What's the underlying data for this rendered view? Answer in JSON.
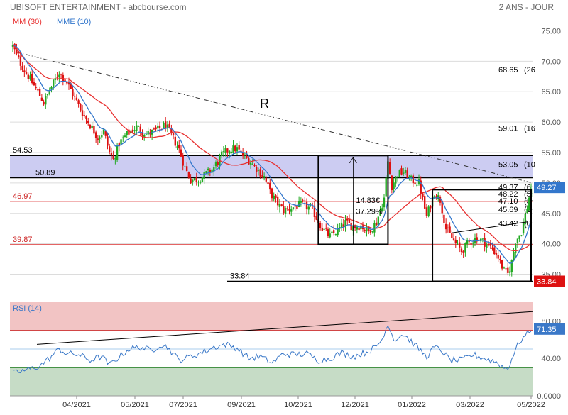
{
  "header": {
    "title": "UBISOFT ENTERTAINMENT - abcbourse.com",
    "period": "2 ANS - JOUR"
  },
  "colors": {
    "up": "#22aa22",
    "down": "#dd1111",
    "mm": "#e83030",
    "mme": "#3377cc",
    "zone": "#ccccf2",
    "rsi": "#3a78c8",
    "rsi_overbought_zone": "#f2c4c4",
    "rsi_oversold_zone": "#c6dcc6",
    "grid": "#dcdcdc"
  },
  "chart_data": [
    {
      "type": "candlestick",
      "legend": [
        {
          "label": "MM (30)",
          "color": "#e83030"
        },
        {
          "label": "MME (10)",
          "color": "#3377cc"
        }
      ],
      "x_tick_labels": [
        "04/2021",
        "05/2021",
        "07/2021",
        "09/2021",
        "10/2021",
        "12/2021",
        "01/2022",
        "03/2022",
        "05/2022"
      ],
      "y_ticks": [
        35,
        40,
        45,
        50,
        55,
        60,
        65,
        70,
        75
      ],
      "y_tick_labels": [
        "35.00",
        "40.00",
        "45.00",
        "50.00",
        "55.00",
        "60.00",
        "65.00",
        "70.00",
        "75.00"
      ],
      "ylim": [
        32.5,
        77.5
      ],
      "last_price": 49.27,
      "last_price_label": "49.27",
      "support_value": 33.84,
      "support_value_label": "33.84",
      "anchors": [
        {
          "t": 0,
          "v": 72.5
        },
        {
          "t": 3,
          "v": 70.2
        },
        {
          "t": 7,
          "v": 68.0
        },
        {
          "t": 12,
          "v": 65.5
        },
        {
          "t": 16,
          "v": 63.2
        },
        {
          "t": 20,
          "v": 65.8
        },
        {
          "t": 24,
          "v": 68.2
        },
        {
          "t": 28,
          "v": 66.5
        },
        {
          "t": 32,
          "v": 64.0
        },
        {
          "t": 36,
          "v": 61.5
        },
        {
          "t": 40,
          "v": 59.5
        },
        {
          "t": 44,
          "v": 57.5
        },
        {
          "t": 47,
          "v": 58.5
        },
        {
          "t": 50,
          "v": 55.0
        },
        {
          "t": 52,
          "v": 53.8
        },
        {
          "t": 55,
          "v": 56.5
        },
        {
          "t": 59,
          "v": 58.0
        },
        {
          "t": 64,
          "v": 59.2
        },
        {
          "t": 69,
          "v": 58.0
        },
        {
          "t": 74,
          "v": 58.6
        },
        {
          "t": 79,
          "v": 59.5
        },
        {
          "t": 82,
          "v": 57.8
        },
        {
          "t": 86,
          "v": 55.5
        },
        {
          "t": 89,
          "v": 52.5
        },
        {
          "t": 92,
          "v": 50.5
        },
        {
          "t": 96,
          "v": 50.6
        },
        {
          "t": 100,
          "v": 51.5
        },
        {
          "t": 104,
          "v": 52.5
        },
        {
          "t": 108,
          "v": 54.5
        },
        {
          "t": 112,
          "v": 55.6
        },
        {
          "t": 116,
          "v": 55.6
        },
        {
          "t": 119,
          "v": 54.5
        },
        {
          "t": 123,
          "v": 53.5
        },
        {
          "t": 127,
          "v": 52.0
        },
        {
          "t": 130,
          "v": 51.0
        },
        {
          "t": 133,
          "v": 48.5
        },
        {
          "t": 136,
          "v": 47.0
        },
        {
          "t": 140,
          "v": 45.5
        },
        {
          "t": 145,
          "v": 46.0
        },
        {
          "t": 150,
          "v": 46.5
        },
        {
          "t": 155,
          "v": 45.5
        },
        {
          "t": 160,
          "v": 42.5
        },
        {
          "t": 164,
          "v": 41.2
        },
        {
          "t": 168,
          "v": 42.2
        },
        {
          "t": 172,
          "v": 43.5
        },
        {
          "t": 176,
          "v": 42.8
        },
        {
          "t": 180,
          "v": 43.0
        },
        {
          "t": 184,
          "v": 42.0
        },
        {
          "t": 188,
          "v": 43.5
        },
        {
          "t": 192,
          "v": 47.5
        },
        {
          "t": 194,
          "v": 53.5
        },
        {
          "t": 196,
          "v": 49.5
        },
        {
          "t": 199,
          "v": 51.5
        },
        {
          "t": 202,
          "v": 51.8
        },
        {
          "t": 206,
          "v": 50.5
        },
        {
          "t": 210,
          "v": 50.0
        },
        {
          "t": 214,
          "v": 44.5
        },
        {
          "t": 218,
          "v": 48.5
        },
        {
          "t": 221,
          "v": 47.2
        },
        {
          "t": 224,
          "v": 42.5
        },
        {
          "t": 228,
          "v": 40.5
        },
        {
          "t": 232,
          "v": 38.8
        },
        {
          "t": 236,
          "v": 40.3
        },
        {
          "t": 240,
          "v": 41.0
        },
        {
          "t": 244,
          "v": 40.2
        },
        {
          "t": 248,
          "v": 39.2
        },
        {
          "t": 251,
          "v": 37.8
        },
        {
          "t": 254,
          "v": 35.5
        },
        {
          "t": 256,
          "v": 35.0
        },
        {
          "t": 258,
          "v": 37.0
        },
        {
          "t": 260,
          "v": 40.5
        },
        {
          "t": 263,
          "v": 42.0
        },
        {
          "t": 266,
          "v": 46.0
        },
        {
          "t": 268,
          "v": 49.27
        }
      ],
      "horizontal_levels": [
        {
          "value": 54.53,
          "label": "54.53",
          "color": "#000000",
          "width": 2
        },
        {
          "value": 50.89,
          "label": "50.89",
          "color": "#000000",
          "width": 2
        },
        {
          "value": 46.97,
          "label": "46.97",
          "color": "#dd3333",
          "width": 1
        },
        {
          "value": 39.87,
          "label": "39.87",
          "color": "#dd3333",
          "width": 1
        }
      ],
      "support_label": "33.84",
      "fib_levels": [
        {
          "value": 68.65,
          "label": "68.65",
          "pct": "(26"
        },
        {
          "value": 59.01,
          "label": "59.01",
          "pct": "(16"
        },
        {
          "value": 53.05,
          "label": "53.05",
          "pct": "(10"
        },
        {
          "value": 49.37,
          "label": "49.37",
          "pct": "(6"
        },
        {
          "value": 48.22,
          "label": "48.22",
          "pct": "(5"
        },
        {
          "value": 47.1,
          "label": "47.10",
          "pct": "(3"
        },
        {
          "value": 45.69,
          "label": "45.69",
          "pct": "(2"
        },
        {
          "value": 43.42,
          "label": "43.42",
          "pct": "(0"
        }
      ],
      "annotations": {
        "trend_label": "R",
        "measure_value": "14.83€",
        "measure_pct": "37.29%"
      }
    },
    {
      "type": "line",
      "title": "RSI (14)",
      "y_ticks": [
        0,
        40,
        80
      ],
      "y_tick_labels": [
        "0.0000",
        "40.00",
        "80.00"
      ],
      "ylim": [
        0,
        100
      ],
      "overbought": 70,
      "oversold": 30,
      "last_value": 71.35,
      "last_value_label": "71.35",
      "anchors": [
        {
          "t": 0,
          "v": 24
        },
        {
          "t": 8,
          "v": 28
        },
        {
          "t": 14,
          "v": 32
        },
        {
          "t": 20,
          "v": 42
        },
        {
          "t": 24,
          "v": 50
        },
        {
          "t": 28,
          "v": 45
        },
        {
          "t": 34,
          "v": 44
        },
        {
          "t": 40,
          "v": 38
        },
        {
          "t": 46,
          "v": 42
        },
        {
          "t": 50,
          "v": 33
        },
        {
          "t": 54,
          "v": 40
        },
        {
          "t": 60,
          "v": 50
        },
        {
          "t": 66,
          "v": 52
        },
        {
          "t": 72,
          "v": 48
        },
        {
          "t": 76,
          "v": 55
        },
        {
          "t": 80,
          "v": 52
        },
        {
          "t": 86,
          "v": 38
        },
        {
          "t": 92,
          "v": 42
        },
        {
          "t": 100,
          "v": 48
        },
        {
          "t": 104,
          "v": 52
        },
        {
          "t": 110,
          "v": 55
        },
        {
          "t": 116,
          "v": 51
        },
        {
          "t": 122,
          "v": 40
        },
        {
          "t": 128,
          "v": 42
        },
        {
          "t": 134,
          "v": 35
        },
        {
          "t": 140,
          "v": 45
        },
        {
          "t": 146,
          "v": 44
        },
        {
          "t": 152,
          "v": 45
        },
        {
          "t": 158,
          "v": 38
        },
        {
          "t": 164,
          "v": 40
        },
        {
          "t": 170,
          "v": 46
        },
        {
          "t": 176,
          "v": 42
        },
        {
          "t": 182,
          "v": 46
        },
        {
          "t": 188,
          "v": 52
        },
        {
          "t": 192,
          "v": 64
        },
        {
          "t": 194,
          "v": 78
        },
        {
          "t": 197,
          "v": 60
        },
        {
          "t": 202,
          "v": 66
        },
        {
          "t": 208,
          "v": 54
        },
        {
          "t": 214,
          "v": 42
        },
        {
          "t": 218,
          "v": 52
        },
        {
          "t": 222,
          "v": 48
        },
        {
          "t": 226,
          "v": 38
        },
        {
          "t": 232,
          "v": 38
        },
        {
          "t": 238,
          "v": 44
        },
        {
          "t": 244,
          "v": 40
        },
        {
          "t": 250,
          "v": 36
        },
        {
          "t": 254,
          "v": 30
        },
        {
          "t": 256,
          "v": 29
        },
        {
          "t": 258,
          "v": 40
        },
        {
          "t": 262,
          "v": 58
        },
        {
          "t": 266,
          "v": 66
        },
        {
          "t": 268,
          "v": 71.35
        }
      ]
    }
  ]
}
